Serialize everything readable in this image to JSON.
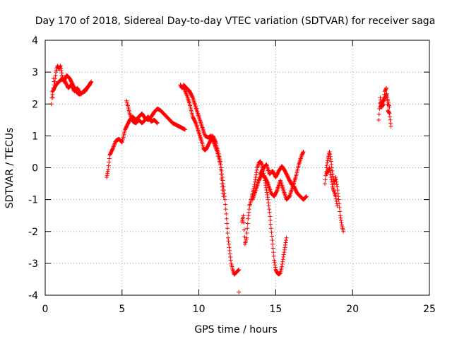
{
  "chart_data": {
    "type": "scatter",
    "title": "Day 170 of 2018, Sidereal Day-to-day VTEC variation (SDTVAR) for receiver saga",
    "xlabel": "GPS time / hours",
    "ylabel": "SDTVAR / TECUs",
    "xlim": [
      0,
      25
    ],
    "ylim": [
      -4,
      4
    ],
    "xticks": [
      "0",
      "5",
      "10",
      "15",
      "20",
      "25"
    ],
    "yticks": [
      "-4",
      "-3",
      "-2",
      "-1",
      "0",
      "1",
      "2",
      "3",
      "4"
    ],
    "grid": true,
    "marker": "+",
    "colors": {
      "series": "#ff0000",
      "grid": "#a0a0a0",
      "frame": "#000000"
    },
    "series": [
      {
        "tracks": [
          {
            "points": [
              [
                0.4,
                2.0
              ],
              [
                0.45,
                2.4
              ],
              [
                0.5,
                2.2
              ],
              [
                0.55,
                2.8
              ],
              [
                0.6,
                2.6
              ],
              [
                0.7,
                3.0
              ],
              [
                0.8,
                3.2
              ],
              [
                0.9,
                3.1
              ],
              [
                1.0,
                3.2
              ],
              [
                1.1,
                2.9
              ],
              [
                1.2,
                2.7
              ],
              [
                1.4,
                2.9
              ],
              [
                1.6,
                2.8
              ],
              [
                1.8,
                2.6
              ],
              [
                2.0,
                2.4
              ],
              [
                2.2,
                2.3
              ],
              [
                2.4,
                2.35
              ],
              [
                2.6,
                2.4
              ],
              [
                2.8,
                2.55
              ],
              [
                3.0,
                2.7
              ]
            ]
          },
          {
            "points": [
              [
                0.5,
                2.4
              ],
              [
                0.7,
                2.6
              ],
              [
                0.9,
                2.7
              ],
              [
                1.1,
                2.8
              ],
              [
                1.3,
                2.7
              ],
              [
                1.5,
                2.5
              ],
              [
                1.7,
                2.6
              ],
              [
                1.9,
                2.4
              ],
              [
                2.1,
                2.5
              ],
              [
                2.3,
                2.3
              ],
              [
                2.5,
                2.4
              ],
              [
                2.7,
                2.5
              ],
              [
                2.9,
                2.6
              ]
            ]
          },
          {
            "points": [
              [
                4.0,
                -0.3
              ],
              [
                4.1,
                -0.05
              ],
              [
                4.2,
                0.4
              ],
              [
                4.4,
                0.6
              ],
              [
                4.6,
                0.85
              ],
              [
                4.8,
                0.9
              ],
              [
                5.0,
                0.8
              ],
              [
                5.1,
                1.0
              ],
              [
                5.2,
                1.2
              ],
              [
                5.3,
                1.3
              ],
              [
                5.5,
                1.5
              ],
              [
                5.7,
                1.6
              ],
              [
                5.9,
                1.5
              ],
              [
                6.1,
                1.6
              ],
              [
                6.3,
                1.7
              ],
              [
                6.5,
                1.55
              ],
              [
                6.7,
                1.5
              ],
              [
                6.9,
                1.6
              ],
              [
                7.1,
                1.75
              ],
              [
                7.3,
                1.85
              ],
              [
                7.5,
                1.8
              ],
              [
                7.7,
                1.7
              ],
              [
                7.9,
                1.6
              ],
              [
                8.1,
                1.5
              ],
              [
                8.3,
                1.4
              ],
              [
                8.5,
                1.35
              ],
              [
                8.7,
                1.3
              ],
              [
                8.9,
                1.25
              ],
              [
                9.1,
                1.2
              ]
            ]
          },
          {
            "points": [
              [
                5.3,
                2.1
              ],
              [
                5.4,
                1.9
              ],
              [
                5.5,
                1.7
              ],
              [
                5.6,
                1.55
              ],
              [
                5.7,
                1.45
              ],
              [
                5.9,
                1.4
              ],
              [
                6.1,
                1.5
              ],
              [
                6.3,
                1.4
              ],
              [
                6.5,
                1.5
              ],
              [
                6.7,
                1.6
              ],
              [
                6.9,
                1.45
              ],
              [
                7.1,
                1.5
              ],
              [
                7.3,
                1.4
              ]
            ]
          },
          {
            "points": [
              [
                8.8,
                2.6
              ],
              [
                8.9,
                2.5
              ],
              [
                9.0,
                2.55
              ],
              [
                9.2,
                2.3
              ],
              [
                9.4,
                2.0
              ],
              [
                9.6,
                1.6
              ],
              [
                9.8,
                1.4
              ],
              [
                10.0,
                1.1
              ],
              [
                10.2,
                0.8
              ],
              [
                10.3,
                0.6
              ],
              [
                10.4,
                0.55
              ],
              [
                10.5,
                0.6
              ],
              [
                10.6,
                0.7
              ],
              [
                10.7,
                0.8
              ],
              [
                10.8,
                0.9
              ],
              [
                10.9,
                1.0
              ],
              [
                11.0,
                0.9
              ],
              [
                11.1,
                0.8
              ],
              [
                11.2,
                0.6
              ],
              [
                11.3,
                0.4
              ],
              [
                11.4,
                0.2
              ],
              [
                11.5,
                -0.2
              ],
              [
                11.6,
                -0.6
              ],
              [
                11.7,
                -1.0
              ],
              [
                11.8,
                -1.6
              ],
              [
                11.9,
                -2.2
              ],
              [
                12.0,
                -2.6
              ],
              [
                12.1,
                -3.0
              ],
              [
                12.2,
                -3.2
              ],
              [
                12.3,
                -3.35
              ],
              [
                12.4,
                -3.3
              ],
              [
                12.5,
                -3.25
              ],
              [
                12.6,
                -3.2
              ]
            ]
          },
          {
            "points": [
              [
                9.0,
                2.6
              ],
              [
                9.2,
                2.5
              ],
              [
                9.4,
                2.4
              ],
              [
                9.6,
                2.2
              ],
              [
                9.8,
                1.9
              ],
              [
                10.0,
                1.6
              ],
              [
                10.2,
                1.3
              ],
              [
                10.4,
                1.0
              ],
              [
                10.6,
                0.95
              ],
              [
                10.8,
                1.0
              ],
              [
                11.0,
                0.75
              ],
              [
                11.2,
                0.5
              ],
              [
                11.4,
                0.1
              ],
              [
                11.5,
                -0.5
              ],
              [
                11.6,
                -0.9
              ]
            ]
          },
          {
            "points": [
              [
                12.6,
                -3.9
              ]
            ]
          },
          {
            "points": [
              [
                12.8,
                -1.7
              ],
              [
                12.9,
                -1.5
              ],
              [
                13.0,
                -2.4
              ],
              [
                13.1,
                -2.2
              ],
              [
                13.2,
                -1.6
              ],
              [
                13.3,
                -1.2
              ],
              [
                13.4,
                -1.0
              ],
              [
                13.5,
                -0.8
              ],
              [
                13.6,
                -0.6
              ],
              [
                13.7,
                -0.3
              ],
              [
                13.8,
                0.0
              ],
              [
                13.9,
                0.15
              ],
              [
                14.0,
                0.2
              ],
              [
                14.1,
                0.1
              ],
              [
                14.2,
                -0.1
              ],
              [
                14.3,
                -0.4
              ],
              [
                14.4,
                -0.7
              ],
              [
                14.5,
                -1.0
              ],
              [
                14.6,
                -1.4
              ],
              [
                14.7,
                -1.9
              ],
              [
                14.8,
                -2.4
              ],
              [
                14.9,
                -2.9
              ],
              [
                15.0,
                -3.2
              ],
              [
                15.1,
                -3.3
              ],
              [
                15.2,
                -3.35
              ],
              [
                15.3,
                -3.3
              ],
              [
                15.4,
                -3.1
              ],
              [
                15.5,
                -2.8
              ],
              [
                15.6,
                -2.5
              ],
              [
                15.7,
                -2.2
              ]
            ]
          },
          {
            "points": [
              [
                13.5,
                -1.0
              ],
              [
                13.7,
                -0.7
              ],
              [
                13.9,
                -0.4
              ],
              [
                14.1,
                -0.2
              ],
              [
                14.3,
                -0.3
              ],
              [
                14.5,
                -0.5
              ],
              [
                14.7,
                -0.8
              ],
              [
                14.9,
                -0.9
              ],
              [
                15.1,
                -0.7
              ],
              [
                15.3,
                -0.4
              ],
              [
                15.5,
                -0.7
              ],
              [
                15.7,
                -1.0
              ],
              [
                15.9,
                -0.9
              ],
              [
                16.1,
                -0.6
              ],
              [
                16.3,
                -0.3
              ],
              [
                16.5,
                0.1
              ],
              [
                16.7,
                0.4
              ],
              [
                16.8,
                0.5
              ]
            ]
          },
          {
            "points": [
              [
                14.0,
                -0.2
              ],
              [
                14.2,
                0.0
              ],
              [
                14.4,
                0.1
              ],
              [
                14.6,
                -0.2
              ],
              [
                14.8,
                -0.1
              ],
              [
                15.0,
                -0.3
              ],
              [
                15.2,
                -0.1
              ],
              [
                15.4,
                0.05
              ],
              [
                15.6,
                -0.1
              ],
              [
                15.8,
                -0.3
              ],
              [
                16.0,
                -0.5
              ],
              [
                16.2,
                -0.6
              ],
              [
                16.4,
                -0.8
              ],
              [
                16.6,
                -0.9
              ],
              [
                16.8,
                -1.0
              ],
              [
                17.0,
                -0.9
              ]
            ]
          },
          {
            "points": [
              [
                18.2,
                -0.5
              ],
              [
                18.3,
                0.0
              ],
              [
                18.4,
                0.3
              ],
              [
                18.5,
                0.5
              ],
              [
                18.6,
                0.2
              ],
              [
                18.7,
                -0.2
              ],
              [
                18.8,
                -0.5
              ],
              [
                18.9,
                -0.3
              ],
              [
                19.0,
                -0.6
              ],
              [
                19.1,
                -1.0
              ],
              [
                19.2,
                -1.5
              ],
              [
                19.3,
                -1.8
              ],
              [
                19.4,
                -2.0
              ]
            ]
          },
          {
            "points": [
              [
                18.3,
                -0.2
              ],
              [
                18.5,
                0.0
              ],
              [
                18.7,
                -0.6
              ],
              [
                18.9,
                -0.9
              ],
              [
                19.0,
                -1.2
              ]
            ]
          },
          {
            "points": [
              [
                21.7,
                1.5
              ],
              [
                21.8,
                2.2
              ],
              [
                21.9,
                1.9
              ],
              [
                22.0,
                2.0
              ],
              [
                22.1,
                2.4
              ],
              [
                22.2,
                2.5
              ],
              [
                22.3,
                1.8
              ],
              [
                22.4,
                1.7
              ],
              [
                22.5,
                1.3
              ]
            ]
          },
          {
            "points": [
              [
                21.8,
                1.9
              ],
              [
                22.0,
                2.1
              ],
              [
                22.2,
                2.3
              ],
              [
                22.4,
                1.9
              ]
            ]
          }
        ]
      }
    ]
  }
}
